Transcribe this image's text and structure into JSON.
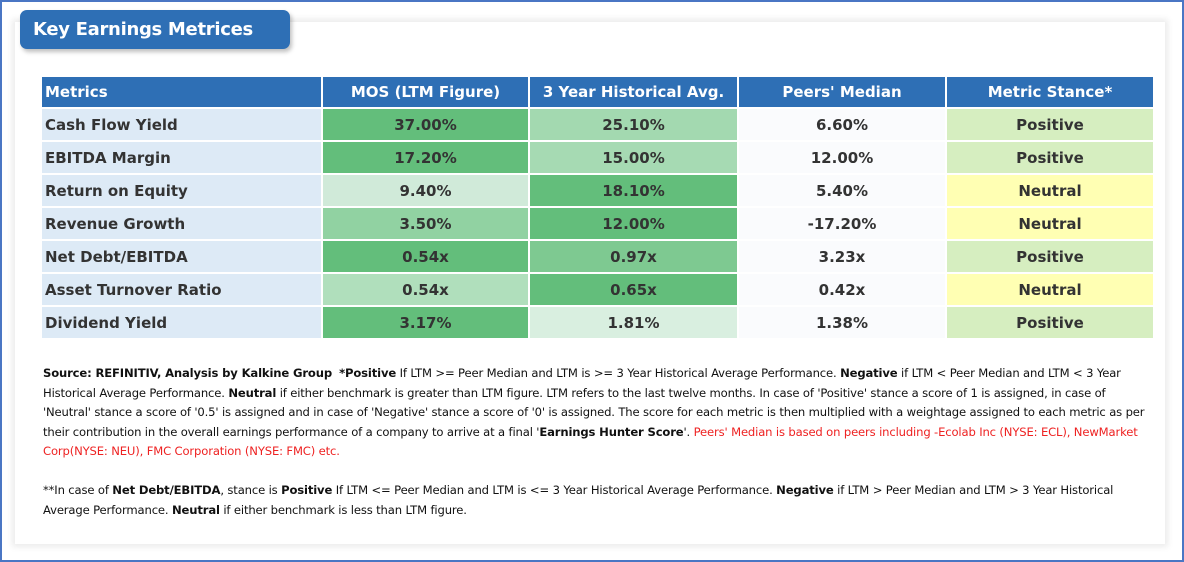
{
  "title": "Key Earnings Metrices",
  "table": {
    "headers": [
      "Metrics",
      "MOS (LTM Figure)",
      "3 Year Historical Avg.",
      "Peers' Median",
      "Metric Stance*"
    ],
    "rows": [
      {
        "metric": "Cash Flow Yield",
        "ltm": "37.00%",
        "hist": "25.10%",
        "peer": "6.60%",
        "stance": "Positive",
        "ltm_color": "#63be7b",
        "hist_color": "#a3d9b0"
      },
      {
        "metric": "EBITDA Margin",
        "ltm": "17.20%",
        "hist": "15.00%",
        "peer": "12.00%",
        "stance": "Positive",
        "ltm_color": "#63be7b",
        "hist_color": "#a6dab3"
      },
      {
        "metric": "Return on Equity",
        "ltm": "9.40%",
        "hist": "18.10%",
        "peer": "5.40%",
        "stance": "Neutral",
        "ltm_color": "#d0ead9",
        "hist_color": "#63be7b"
      },
      {
        "metric": "Revenue Growth",
        "ltm": "3.50%",
        "hist": "12.00%",
        "peer": "-17.20%",
        "stance": "Neutral",
        "ltm_color": "#91d2a2",
        "hist_color": "#63be7b"
      },
      {
        "metric": "Net Debt/EBITDA",
        "ltm": "0.54x",
        "hist": "0.97x",
        "peer": "3.23x",
        "stance": "Positive",
        "ltm_color": "#63be7b",
        "hist_color": "#7ec991"
      },
      {
        "metric": "Asset Turnover Ratio",
        "ltm": "0.54x",
        "hist": "0.65x",
        "peer": "0.42x",
        "stance": "Neutral",
        "ltm_color": "#b0dfbc",
        "hist_color": "#63be7b"
      },
      {
        "metric": "Dividend Yield",
        "ltm": "3.17%",
        "hist": "1.81%",
        "peer": "1.38%",
        "stance": "Positive",
        "ltm_color": "#63be7b",
        "hist_color": "#d9efe0"
      }
    ]
  },
  "notes": {
    "p1": {
      "source": "Source: REFINITIV, Analysis by Kalkine Group",
      "pos_label": "*Positive",
      "pos_text": " If LTM >= Peer Median and LTM is >= 3 Year Historical Average Performance. ",
      "neg_label": "Negative",
      "neg_text": " if LTM < Peer Median and LTM < 3 Year Historical Average Performance. ",
      "neu_label": "Neutral",
      "neu_text": " if either benchmark is greater than LTM figure. LTM refers to the last twelve months. In case of 'Positive' stance a score of 1 is assigned, in case of 'Neutral' stance a score of '0.5' is assigned and in case of 'Negative' stance a score of '0' is assigned. The score for each metric is then multiplied with a weightage assigned to each metric as per their contribution in the overall earnings performance of a company to arrive at a final '",
      "score_label": "Earnings Hunter Score",
      "score_after": "'. ",
      "peers_text": "Peers' Median is based on peers including -Ecolab Inc (NYSE: ECL), NewMarket Corp(NYSE: NEU), FMC Corporation (NYSE: FMC) etc."
    },
    "p2": {
      "intro": "**In case of ",
      "metric_label": "Net Debt/EBITDA",
      "mid": ", stance is ",
      "pos_label": "Positive",
      "pos_text": " If LTM <= Peer Median and LTM is <= 3 Year Historical Average Performance. ",
      "neg_label": "Negative",
      "neg_text": " if LTM > Peer Median and LTM > 3 Year Historical Average Performance. ",
      "neu_label": "Neutral",
      "neu_text": " if either benchmark is less than LTM figure."
    }
  },
  "colors": {
    "header_blue": "#2e6fb5",
    "positive_bg": "#d6eec0",
    "neutral_bg": "#ffffb3",
    "metric_bg": "#ddeaf6",
    "peers_text_red": "#ee2222"
  }
}
